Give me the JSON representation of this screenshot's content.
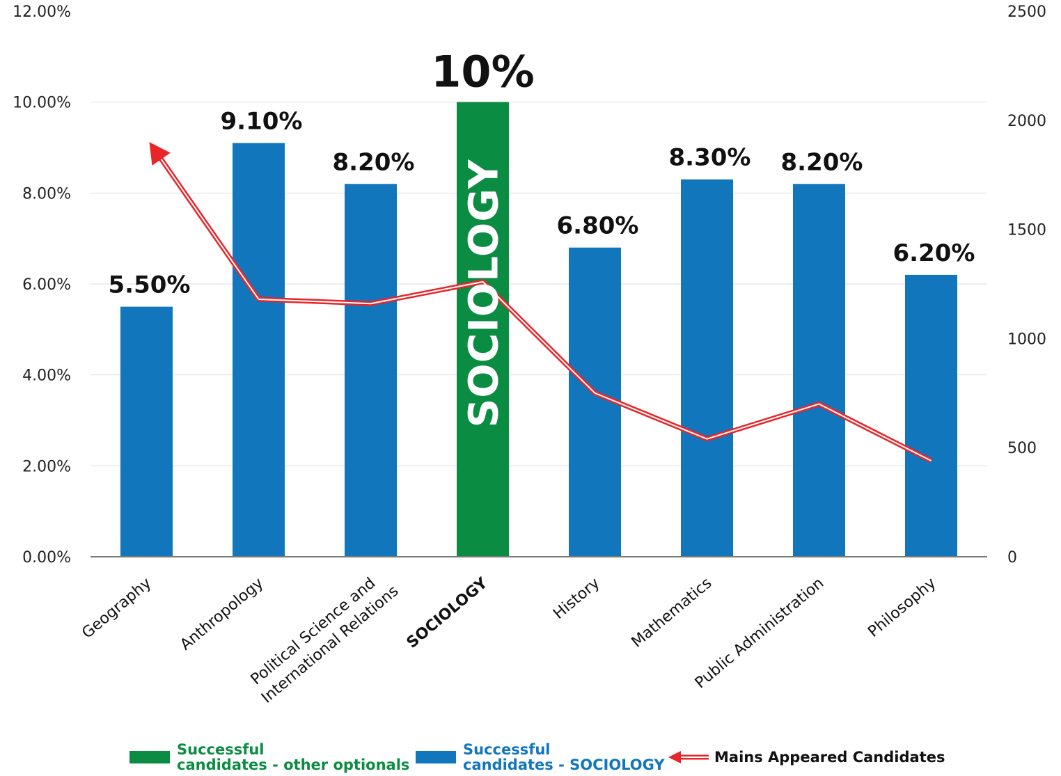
{
  "chart_data": {
    "type": "bar",
    "categories": [
      "Geography",
      "Anthropology",
      "Political Science and International Relations",
      "SOCIOLOGY",
      "History",
      "Mathematics",
      "Public Administration",
      "Philosophy"
    ],
    "category_lines": [
      [
        "Geography"
      ],
      [
        "Anthropology"
      ],
      [
        "Political Science and",
        "International Relations"
      ],
      [
        "SOCIOLOGY"
      ],
      [
        "History"
      ],
      [
        "Mathematics"
      ],
      [
        "Public Administration"
      ],
      [
        "Philosophy"
      ]
    ],
    "highlight_index": 3,
    "series": [
      {
        "name": "Successful candidates - SOCIOLOGY",
        "type": "bar",
        "axis": "left",
        "values": [
          5.5,
          9.1,
          8.2,
          10.0,
          6.8,
          8.3,
          8.2,
          6.2
        ],
        "labels": [
          "5.50%",
          "9.10%",
          "8.20%",
          "10%",
          "6.80%",
          "8.30%",
          "8.20%",
          "6.20%"
        ]
      },
      {
        "name": "Mains Appeared Candidates",
        "type": "line",
        "axis": "right",
        "values": [
          1900,
          1180,
          1160,
          1260,
          750,
          540,
          700,
          440
        ]
      }
    ],
    "bar_inner_label": "SOCIOLOGY",
    "y_left": {
      "min": 0,
      "max": 12,
      "ticks": [
        "0.00%",
        "2.00%",
        "4.00%",
        "6.00%",
        "8.00%",
        "10.00%",
        "12.00%"
      ]
    },
    "y_right": {
      "min": 0,
      "max": 2500,
      "ticks": [
        "0",
        "500",
        "1000",
        "1500",
        "2000",
        "2500"
      ]
    },
    "colors": {
      "bar": "#1176bb",
      "bar_highlight": "#0b8c43",
      "line": "#e8262a",
      "grid": "#dedede"
    },
    "grid": true
  },
  "legend": {
    "green_label_line1": "Successful",
    "green_label_line2": "candidates - other optionals",
    "blue_label_line1": "Successful",
    "blue_label_line2": "candidates - SOCIOLOGY",
    "line_label": "Mains Appeared Candidates"
  }
}
